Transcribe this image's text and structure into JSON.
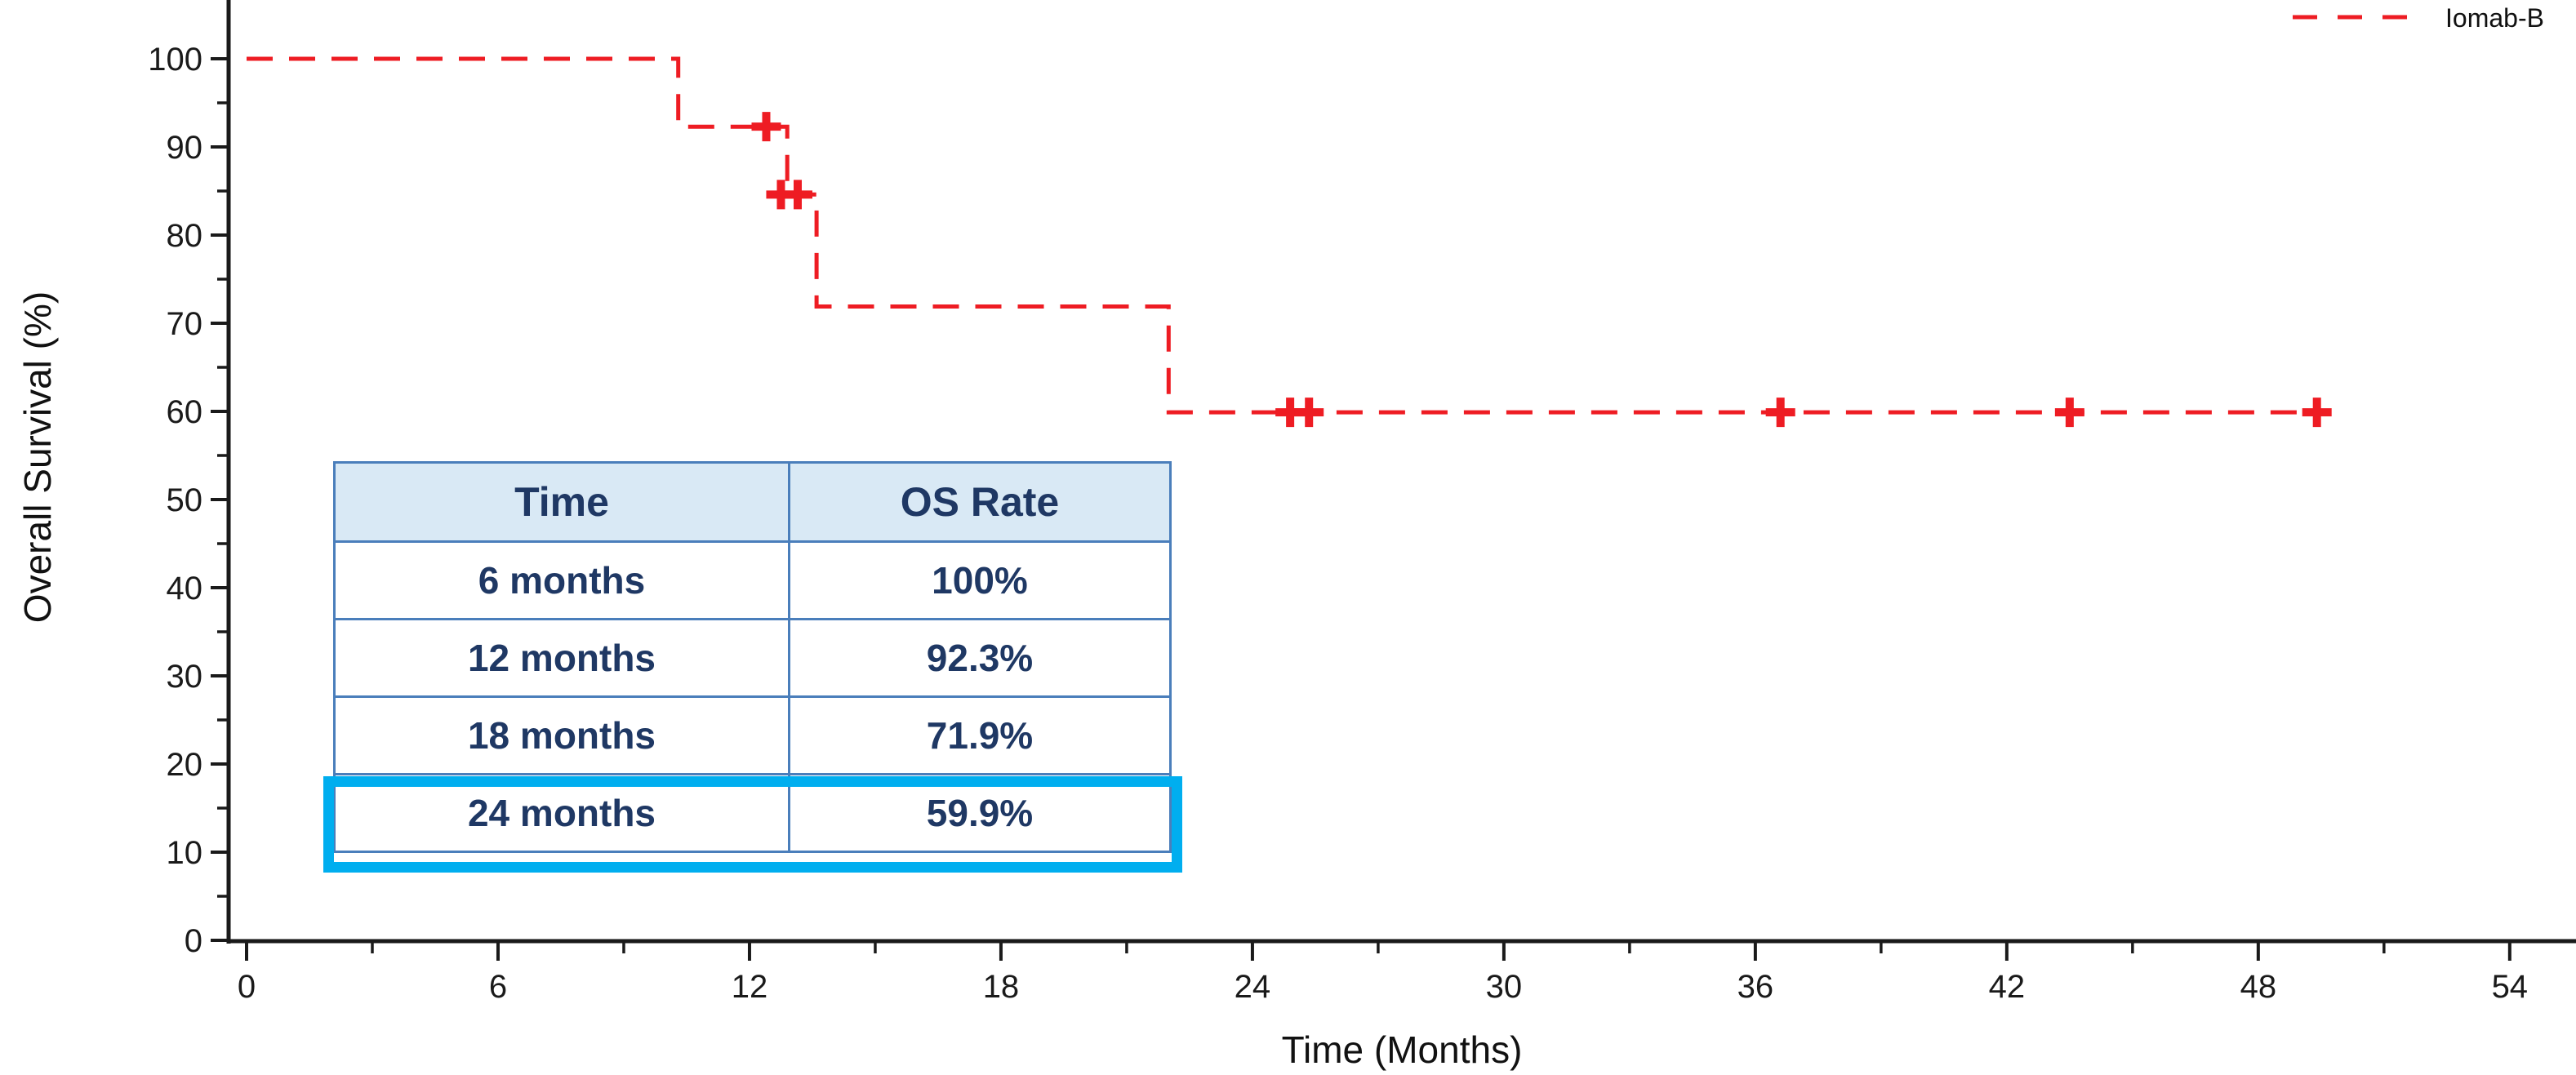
{
  "legend": {
    "label": "Iomab-B"
  },
  "chart_data": {
    "type": "line",
    "subtype": "kaplan-meier-step",
    "title": "",
    "xlabel": "Time (Months)",
    "ylabel": "Overall Survival (%)",
    "xlim": [
      0,
      54
    ],
    "ylim": [
      0,
      100
    ],
    "grid": false,
    "legend_position": "top-right",
    "x_ticks_major": [
      0,
      6,
      12,
      18,
      24,
      30,
      36,
      42,
      48,
      54
    ],
    "x_ticks_minor": [
      3,
      9,
      15,
      21,
      27,
      33,
      39,
      45,
      51
    ],
    "y_ticks_major": [
      0,
      10,
      20,
      30,
      40,
      50,
      60,
      70,
      80,
      90,
      100
    ],
    "y_ticks_minor": [
      5,
      15,
      25,
      35,
      45,
      55,
      65,
      75,
      85,
      95
    ],
    "series": [
      {
        "name": "Iomab-B",
        "color": "#EE1C23",
        "line_style": "dashed",
        "step": true,
        "points": [
          [
            0,
            100
          ],
          [
            10.3,
            100
          ],
          [
            10.3,
            92.3
          ],
          [
            12.9,
            92.3
          ],
          [
            12.9,
            84.6
          ],
          [
            13.6,
            84.6
          ],
          [
            13.6,
            71.9
          ],
          [
            22,
            71.9
          ],
          [
            22,
            59.9
          ],
          [
            49.6,
            59.9
          ]
        ],
        "censor_marks": [
          [
            12.4,
            92.3
          ],
          [
            12.75,
            84.6
          ],
          [
            13.15,
            84.6
          ],
          [
            24.9,
            59.9
          ],
          [
            25.35,
            59.9
          ],
          [
            36.6,
            59.9
          ],
          [
            43.5,
            59.9
          ],
          [
            49.4,
            59.9
          ]
        ]
      }
    ],
    "os_table": {
      "headers": [
        "Time",
        "OS Rate"
      ],
      "rows": [
        [
          "6 months",
          "100%"
        ],
        [
          "12 months",
          "92.3%"
        ],
        [
          "18 months",
          "71.9%"
        ],
        [
          "24 months",
          "59.9%"
        ]
      ],
      "highlight_row_index": 3
    }
  },
  "colors": {
    "curve_red": "#EE1C23",
    "axis_black": "#1a1a1a",
    "table_border_blue": "#4A7EBB",
    "table_header_bg": "#D9E9F5",
    "table_text_navy": "#1F3864",
    "highlight_cyan": "#00AEEF",
    "background": "#ffffff"
  }
}
